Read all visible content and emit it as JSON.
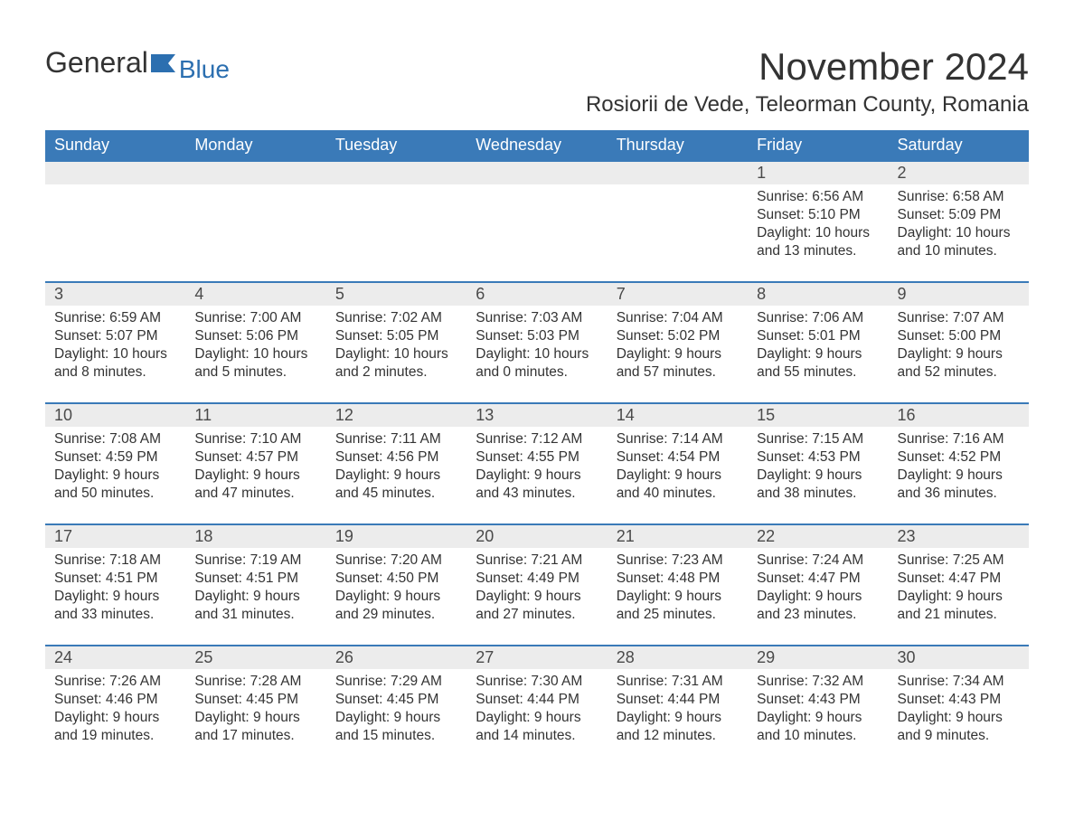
{
  "brand": {
    "name1": "General",
    "name2": "Blue"
  },
  "title": "November 2024",
  "subtitle": "Rosiorii de Vede, Teleorman County, Romania",
  "colors": {
    "header_bg": "#3a7ab8",
    "header_text": "#ffffff",
    "daynum_bg": "#ececec",
    "daynum_border": "#3a7ab8",
    "body_text": "#333333",
    "brand_blue": "#2c6fb0",
    "page_bg": "#ffffff"
  },
  "weekdays": [
    "Sunday",
    "Monday",
    "Tuesday",
    "Wednesday",
    "Thursday",
    "Friday",
    "Saturday"
  ],
  "weeks": [
    {
      "days": [
        null,
        null,
        null,
        null,
        null,
        {
          "n": "1",
          "sunrise": "Sunrise: 6:56 AM",
          "sunset": "Sunset: 5:10 PM",
          "dl1": "Daylight: 10 hours",
          "dl2": "and 13 minutes."
        },
        {
          "n": "2",
          "sunrise": "Sunrise: 6:58 AM",
          "sunset": "Sunset: 5:09 PM",
          "dl1": "Daylight: 10 hours",
          "dl2": "and 10 minutes."
        }
      ]
    },
    {
      "days": [
        {
          "n": "3",
          "sunrise": "Sunrise: 6:59 AM",
          "sunset": "Sunset: 5:07 PM",
          "dl1": "Daylight: 10 hours",
          "dl2": "and 8 minutes."
        },
        {
          "n": "4",
          "sunrise": "Sunrise: 7:00 AM",
          "sunset": "Sunset: 5:06 PM",
          "dl1": "Daylight: 10 hours",
          "dl2": "and 5 minutes."
        },
        {
          "n": "5",
          "sunrise": "Sunrise: 7:02 AM",
          "sunset": "Sunset: 5:05 PM",
          "dl1": "Daylight: 10 hours",
          "dl2": "and 2 minutes."
        },
        {
          "n": "6",
          "sunrise": "Sunrise: 7:03 AM",
          "sunset": "Sunset: 5:03 PM",
          "dl1": "Daylight: 10 hours",
          "dl2": "and 0 minutes."
        },
        {
          "n": "7",
          "sunrise": "Sunrise: 7:04 AM",
          "sunset": "Sunset: 5:02 PM",
          "dl1": "Daylight: 9 hours",
          "dl2": "and 57 minutes."
        },
        {
          "n": "8",
          "sunrise": "Sunrise: 7:06 AM",
          "sunset": "Sunset: 5:01 PM",
          "dl1": "Daylight: 9 hours",
          "dl2": "and 55 minutes."
        },
        {
          "n": "9",
          "sunrise": "Sunrise: 7:07 AM",
          "sunset": "Sunset: 5:00 PM",
          "dl1": "Daylight: 9 hours",
          "dl2": "and 52 minutes."
        }
      ]
    },
    {
      "days": [
        {
          "n": "10",
          "sunrise": "Sunrise: 7:08 AM",
          "sunset": "Sunset: 4:59 PM",
          "dl1": "Daylight: 9 hours",
          "dl2": "and 50 minutes."
        },
        {
          "n": "11",
          "sunrise": "Sunrise: 7:10 AM",
          "sunset": "Sunset: 4:57 PM",
          "dl1": "Daylight: 9 hours",
          "dl2": "and 47 minutes."
        },
        {
          "n": "12",
          "sunrise": "Sunrise: 7:11 AM",
          "sunset": "Sunset: 4:56 PM",
          "dl1": "Daylight: 9 hours",
          "dl2": "and 45 minutes."
        },
        {
          "n": "13",
          "sunrise": "Sunrise: 7:12 AM",
          "sunset": "Sunset: 4:55 PM",
          "dl1": "Daylight: 9 hours",
          "dl2": "and 43 minutes."
        },
        {
          "n": "14",
          "sunrise": "Sunrise: 7:14 AM",
          "sunset": "Sunset: 4:54 PM",
          "dl1": "Daylight: 9 hours",
          "dl2": "and 40 minutes."
        },
        {
          "n": "15",
          "sunrise": "Sunrise: 7:15 AM",
          "sunset": "Sunset: 4:53 PM",
          "dl1": "Daylight: 9 hours",
          "dl2": "and 38 minutes."
        },
        {
          "n": "16",
          "sunrise": "Sunrise: 7:16 AM",
          "sunset": "Sunset: 4:52 PM",
          "dl1": "Daylight: 9 hours",
          "dl2": "and 36 minutes."
        }
      ]
    },
    {
      "days": [
        {
          "n": "17",
          "sunrise": "Sunrise: 7:18 AM",
          "sunset": "Sunset: 4:51 PM",
          "dl1": "Daylight: 9 hours",
          "dl2": "and 33 minutes."
        },
        {
          "n": "18",
          "sunrise": "Sunrise: 7:19 AM",
          "sunset": "Sunset: 4:51 PM",
          "dl1": "Daylight: 9 hours",
          "dl2": "and 31 minutes."
        },
        {
          "n": "19",
          "sunrise": "Sunrise: 7:20 AM",
          "sunset": "Sunset: 4:50 PM",
          "dl1": "Daylight: 9 hours",
          "dl2": "and 29 minutes."
        },
        {
          "n": "20",
          "sunrise": "Sunrise: 7:21 AM",
          "sunset": "Sunset: 4:49 PM",
          "dl1": "Daylight: 9 hours",
          "dl2": "and 27 minutes."
        },
        {
          "n": "21",
          "sunrise": "Sunrise: 7:23 AM",
          "sunset": "Sunset: 4:48 PM",
          "dl1": "Daylight: 9 hours",
          "dl2": "and 25 minutes."
        },
        {
          "n": "22",
          "sunrise": "Sunrise: 7:24 AM",
          "sunset": "Sunset: 4:47 PM",
          "dl1": "Daylight: 9 hours",
          "dl2": "and 23 minutes."
        },
        {
          "n": "23",
          "sunrise": "Sunrise: 7:25 AM",
          "sunset": "Sunset: 4:47 PM",
          "dl1": "Daylight: 9 hours",
          "dl2": "and 21 minutes."
        }
      ]
    },
    {
      "days": [
        {
          "n": "24",
          "sunrise": "Sunrise: 7:26 AM",
          "sunset": "Sunset: 4:46 PM",
          "dl1": "Daylight: 9 hours",
          "dl2": "and 19 minutes."
        },
        {
          "n": "25",
          "sunrise": "Sunrise: 7:28 AM",
          "sunset": "Sunset: 4:45 PM",
          "dl1": "Daylight: 9 hours",
          "dl2": "and 17 minutes."
        },
        {
          "n": "26",
          "sunrise": "Sunrise: 7:29 AM",
          "sunset": "Sunset: 4:45 PM",
          "dl1": "Daylight: 9 hours",
          "dl2": "and 15 minutes."
        },
        {
          "n": "27",
          "sunrise": "Sunrise: 7:30 AM",
          "sunset": "Sunset: 4:44 PM",
          "dl1": "Daylight: 9 hours",
          "dl2": "and 14 minutes."
        },
        {
          "n": "28",
          "sunrise": "Sunrise: 7:31 AM",
          "sunset": "Sunset: 4:44 PM",
          "dl1": "Daylight: 9 hours",
          "dl2": "and 12 minutes."
        },
        {
          "n": "29",
          "sunrise": "Sunrise: 7:32 AM",
          "sunset": "Sunset: 4:43 PM",
          "dl1": "Daylight: 9 hours",
          "dl2": "and 10 minutes."
        },
        {
          "n": "30",
          "sunrise": "Sunrise: 7:34 AM",
          "sunset": "Sunset: 4:43 PM",
          "dl1": "Daylight: 9 hours",
          "dl2": "and 9 minutes."
        }
      ]
    }
  ]
}
